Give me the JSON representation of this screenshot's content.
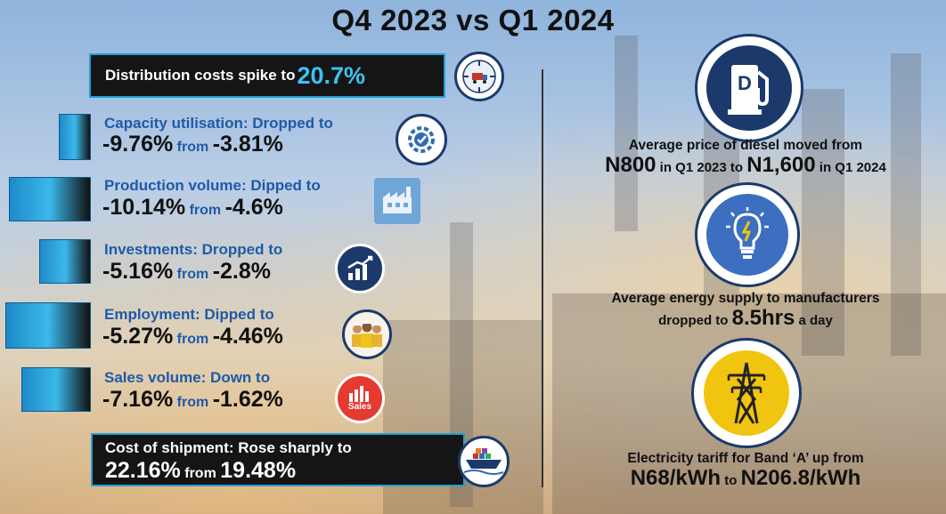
{
  "title": "Q4 2023 vs Q1 2024",
  "distribution": {
    "text": "Distribution costs spike to ",
    "value": "20.7%"
  },
  "stats": [
    {
      "label": "Capacity utilisation: Dropped to",
      "value": "-9.76%",
      "from": "from",
      "prev": "-3.81%"
    },
    {
      "label": "Production volume: Dipped to",
      "value": "-10.14%",
      "from": "from",
      "prev": "-4.6%"
    },
    {
      "label": "Investments: Dropped to",
      "value": "-5.16%",
      "from": "from",
      "prev": "-2.8%"
    },
    {
      "label": "Employment: Dipped to",
      "value": "-5.27%",
      "from": "from",
      "prev": "-4.46%"
    },
    {
      "label": "Sales volume: Down to",
      "value": "-7.16%",
      "from": "from",
      "prev": "-1.62%"
    }
  ],
  "sales_icon_text": "Sales",
  "shipment": {
    "label": "Cost of shipment: Rose sharply to",
    "value": "22.16%",
    "from": "from",
    "prev": "19.48%"
  },
  "diesel": {
    "line1": "Average price of diesel moved from",
    "v1": "N800",
    "t1": " in Q1 2023 to ",
    "v2": "N1,600",
    "t2": " in Q1 2024",
    "icon_letter": "D"
  },
  "energy": {
    "line1": "Average energy supply to manufacturers",
    "t1": "dropped to ",
    "v1": "8.5hrs",
    "t2": " a day"
  },
  "tariff": {
    "line1": "Electricity tariff for Band ‘A’ up from",
    "v1": "N68/kWh",
    "t1": " to ",
    "v2": "N206.8/kWh"
  },
  "colors": {
    "label_blue": "#1f5aa8",
    "accent_blue": "#1ea1d8",
    "icon_navy": "#1b3a6b"
  },
  "icons": [
    "truck-hub-icon",
    "gear-check-icon",
    "factory-icon",
    "growth-chart-icon",
    "workers-icon",
    "sales-chart-icon",
    "ship-icon",
    "fuel-pump-icon",
    "lightbulb-icon",
    "power-pylon-icon"
  ]
}
